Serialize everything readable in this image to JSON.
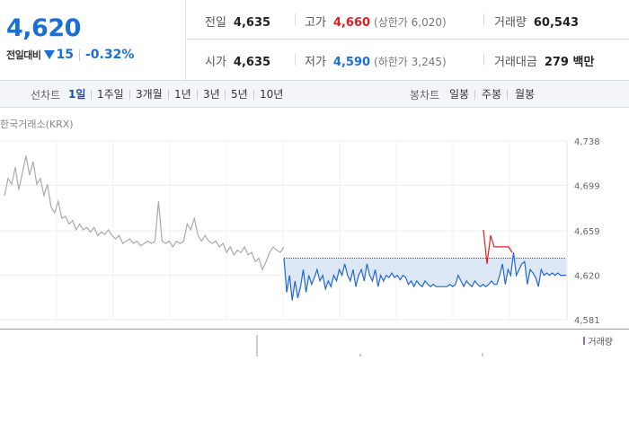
{
  "price": {
    "current": "4,620",
    "change_label": "전일대비",
    "change_amount": "15",
    "change_rate": "-0.32%",
    "direction": "down",
    "color_down": "#1a6fd6",
    "color_up": "#e02020"
  },
  "stats": {
    "prev_close": {
      "label": "전일",
      "value": "4,635"
    },
    "open": {
      "label": "시가",
      "value": "4,635"
    },
    "high": {
      "label": "고가",
      "value": "4,660",
      "sub": "(상한가 6,020)"
    },
    "low": {
      "label": "저가",
      "value": "4,590",
      "sub": "(하한가 3,245)"
    },
    "volume": {
      "label": "거래량",
      "value": "60,543"
    },
    "trade_value": {
      "label": "거래대금",
      "value": "279 백만"
    }
  },
  "toolbar": {
    "line_label": "선차트",
    "line_periods": [
      "1일",
      "1주일",
      "3개월",
      "1년",
      "3년",
      "5년",
      "10년"
    ],
    "active_period": "1일",
    "candle_label": "봉차트",
    "candle_periods": [
      "일봉",
      "주봉",
      "월봉"
    ]
  },
  "source": "한국거래소(KRX)",
  "volume_legend": "거래량",
  "chart_data": {
    "type": "line",
    "y_ticks": [
      "4,738",
      "4,699",
      "4,659",
      "4,620",
      "4,581"
    ],
    "ylim": [
      4581,
      4738
    ],
    "base_price": 4635,
    "series": [
      {
        "name": "",
        "color": "#aaaaaa",
        "values": [
          4690,
          4705,
          4700,
          4715,
          4695,
          4710,
          4725,
          4708,
          4720,
          4700,
          4705,
          4690,
          4700,
          4680,
          4675,
          4685,
          4670,
          4672,
          4665,
          4668,
          4660,
          4665,
          4660,
          4662,
          4658,
          4662,
          4655,
          4658,
          4656,
          4660,
          4655,
          4652,
          4655,
          4648,
          4650,
          4652,
          4648,
          4650,
          4646,
          4648,
          4650,
          4648,
          4650,
          4685,
          4650,
          4648,
          4650,
          4645,
          4650,
          4648,
          4650,
          4665,
          4660,
          4670,
          4655,
          4650,
          4655,
          4650,
          4648,
          4650,
          4645,
          4648,
          4640,
          4645,
          4638,
          4642,
          4640,
          4645,
          4638,
          4640,
          4632,
          4635,
          4625,
          4632,
          4640,
          4645,
          4642,
          4640,
          4645
        ]
      },
      {
        "name": "",
        "color": "#2266d4",
        "values": [
          4635,
          4605,
          4620,
          4598,
          4615,
          4600,
          4610,
          4625,
          4605,
          4620,
          4612,
          4618,
          4625,
          4615,
          4620,
          4608,
          4615,
          4610,
          4620,
          4615,
          4625,
          4620,
          4630,
          4620,
          4615,
          4625,
          4610,
          4620,
          4625,
          4615,
          4630,
          4620,
          4615,
          4625,
          4610,
          4620,
          4615,
          4620,
          4618,
          4622,
          4618,
          4620,
          4616,
          4620,
          4618,
          4612,
          4615,
          4610,
          4615,
          4612,
          4610,
          4615,
          4612,
          4610,
          4612,
          4610,
          4610,
          4610,
          4610,
          4610,
          4612,
          4610,
          4612,
          4620,
          4615,
          4610,
          4615,
          4612,
          4610,
          4615,
          4612,
          4610,
          4612,
          4610,
          4612,
          4615,
          4612,
          4612,
          4620,
          4630,
          4612,
          4625,
          4620,
          4640,
          4620,
          4625,
          4630,
          4632,
          4612,
          4625,
          4622,
          4618,
          4610,
          4625,
          4620,
          4622,
          4620,
          4622,
          4620,
          4622,
          4620,
          4620,
          4620
        ]
      },
      {
        "name": "",
        "color": "#e02020",
        "values": [
          4660,
          4630,
          4655,
          4645,
          4645,
          4645,
          4645,
          4645,
          4640
        ]
      }
    ]
  }
}
